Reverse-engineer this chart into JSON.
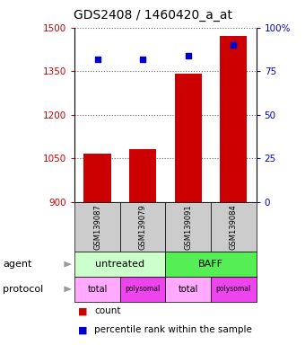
{
  "title": "GDS2408 / 1460420_a_at",
  "samples": [
    "GSM139087",
    "GSM139079",
    "GSM139091",
    "GSM139084"
  ],
  "bar_values": [
    1065,
    1080,
    1340,
    1470
  ],
  "percentile_values": [
    82,
    82,
    84,
    90
  ],
  "ylim_left": [
    900,
    1500
  ],
  "ylim_right": [
    0,
    100
  ],
  "yticks_left": [
    900,
    1050,
    1200,
    1350,
    1500
  ],
  "yticks_right": [
    0,
    25,
    50,
    75,
    100
  ],
  "bar_color": "#cc0000",
  "dot_color": "#0000cc",
  "bar_width": 0.6,
  "agent_configs": [
    [
      "untreated",
      2,
      "#ccffcc"
    ],
    [
      "BAFF",
      2,
      "#55ee55"
    ]
  ],
  "protocol_labels": [
    "total",
    "polysomal",
    "total",
    "polysomal"
  ],
  "protocol_colors": [
    "#ffaaff",
    "#ee44ee",
    "#ffaaff",
    "#ee44ee"
  ],
  "row_label_agent": "agent",
  "row_label_protocol": "protocol",
  "legend_count_color": "#cc0000",
  "legend_dot_color": "#0000cc",
  "legend_count_label": "count",
  "legend_percentile_label": "percentile rank within the sample",
  "title_fontsize": 10,
  "axis_color_left": "#cc0000",
  "axis_color_right": "#0000cc",
  "grid_color": "#666666",
  "bg_color": "#ffffff",
  "sample_cell_color": "#cccccc",
  "arrow_color": "#999999"
}
